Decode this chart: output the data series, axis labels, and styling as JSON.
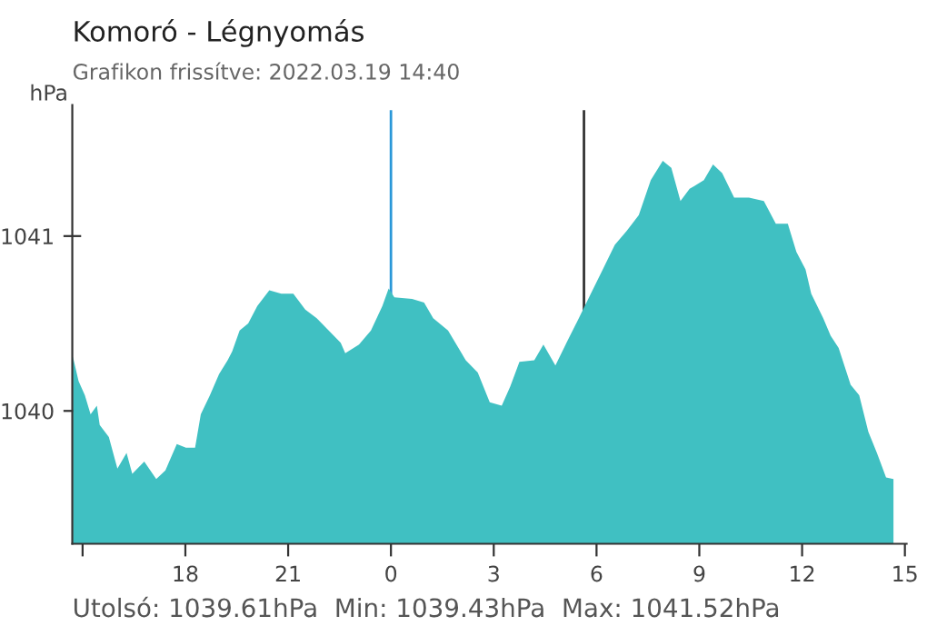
{
  "chart_data": {
    "type": "area",
    "title": "Komoró - Légnyomás",
    "subtitle": "Grafikon frissítve: 2022.03.19 14:40",
    "ylabel": "hPa",
    "annotations": [
      "Utolsó: 1039.61hPa  Min: 1039.43hPa  Max: 1041.52hPa"
    ],
    "x": [
      "2022-03-18T14:43",
      "2022-03-18T14:53",
      "2022-03-18T15:04",
      "2022-03-18T15:14",
      "2022-03-18T15:25",
      "2022-03-18T15:30",
      "2022-03-18T15:46",
      "2022-03-18T16:01",
      "2022-03-18T16:17",
      "2022-03-18T16:27",
      "2022-03-18T16:48",
      "2022-03-18T17:09",
      "2022-03-18T17:25",
      "2022-03-18T17:45",
      "2022-03-18T18:01",
      "2022-03-18T18:17",
      "2022-03-18T18:27",
      "2022-03-18T18:43",
      "2022-03-18T18:59",
      "2022-03-18T19:14",
      "2022-03-18T19:22",
      "2022-03-18T19:35",
      "2022-03-18T19:50",
      "2022-03-18T20:06",
      "2022-03-18T20:27",
      "2022-03-18T20:48",
      "2022-03-18T21:09",
      "2022-03-18T21:30",
      "2022-03-18T21:50",
      "2022-03-18T22:11",
      "2022-03-18T22:32",
      "2022-03-18T22:40",
      "2022-03-18T23:04",
      "2022-03-18T23:25",
      "2022-03-18T23:45",
      "2022-03-18T23:56",
      "2022-03-19T00:06",
      "2022-03-19T00:37",
      "2022-03-19T00:58",
      "2022-03-19T01:14",
      "2022-03-19T01:40",
      "2022-03-19T02:11",
      "2022-03-19T02:32",
      "2022-03-19T02:53",
      "2022-03-19T03:14",
      "2022-03-19T03:29",
      "2022-03-19T03:45",
      "2022-03-19T04:11",
      "2022-03-19T04:27",
      "2022-03-19T04:48",
      "2022-03-19T05:09",
      "2022-03-19T05:29",
      "2022-03-19T05:50",
      "2022-03-19T06:11",
      "2022-03-19T06:32",
      "2022-03-19T06:53",
      "2022-03-19T07:14",
      "2022-03-19T07:35",
      "2022-03-19T07:56",
      "2022-03-19T08:11",
      "2022-03-19T08:27",
      "2022-03-19T08:43",
      "2022-03-19T09:08",
      "2022-03-19T09:24",
      "2022-03-19T09:40",
      "2022-03-19T10:01",
      "2022-03-19T10:27",
      "2022-03-19T10:53",
      "2022-03-19T11:14",
      "2022-03-19T11:35",
      "2022-03-19T11:50",
      "2022-03-19T12:06",
      "2022-03-19T12:16",
      "2022-03-19T12:37",
      "2022-03-19T12:50",
      "2022-03-19T13:04",
      "2022-03-19T13:25",
      "2022-03-19T13:40",
      "2022-03-19T13:56",
      "2022-03-19T14:11",
      "2022-03-19T14:27",
      "2022-03-19T14:40"
    ],
    "series": [
      {
        "color": "#40c0c2",
        "values": [
          1040.31,
          1040.17,
          1040.09,
          1039.98,
          1040.03,
          1039.92,
          1039.85,
          1039.67,
          1039.76,
          1039.64,
          1039.71,
          1039.61,
          1039.66,
          1039.81,
          1039.79,
          1039.79,
          1039.98,
          1040.09,
          1040.21,
          1040.29,
          1040.34,
          1040.46,
          1040.5,
          1040.6,
          1040.69,
          1040.67,
          1040.67,
          1040.58,
          1040.53,
          1040.46,
          1040.39,
          1040.33,
          1040.38,
          1040.46,
          1040.6,
          1040.7,
          1040.65,
          1040.64,
          1040.62,
          1040.53,
          1040.46,
          1040.29,
          1040.22,
          1040.05,
          1040.03,
          1040.14,
          1040.28,
          1040.29,
          1040.38,
          1040.26,
          1040.4,
          1040.53,
          1040.67,
          1040.81,
          1040.95,
          1041.03,
          1041.12,
          1041.32,
          1041.43,
          1041.39,
          1041.2,
          1041.27,
          1041.32,
          1041.41,
          1041.36,
          1041.22,
          1041.22,
          1041.2,
          1041.07,
          1041.07,
          1040.91,
          1040.81,
          1040.67,
          1040.53,
          1040.43,
          1040.36,
          1040.15,
          1040.09,
          1039.88,
          1039.76,
          1039.62,
          1039.61
        ]
      }
    ],
    "xlim": [
      "2022-03-18T14:42",
      "2022-03-19T15:03"
    ],
    "ylim": [
      1039.24,
      1041.75
    ],
    "xticks": [
      {
        "value": "2022-03-18T15:00",
        "label": null
      },
      {
        "value": "2022-03-18T18:00",
        "label": "18"
      },
      {
        "value": "2022-03-18T21:00",
        "label": "21"
      },
      {
        "value": "2022-03-19T00:00",
        "label": "0"
      },
      {
        "value": "2022-03-19T03:00",
        "label": "3"
      },
      {
        "value": "2022-03-19T06:00",
        "label": "6"
      },
      {
        "value": "2022-03-19T09:00",
        "label": "9"
      },
      {
        "value": "2022-03-19T12:00",
        "label": "12"
      },
      {
        "value": "2022-03-19T15:00",
        "label": "15"
      }
    ],
    "yticks": [
      1040,
      1041
    ],
    "ref_lines": [
      {
        "axis": "x",
        "value": "2022-03-19T00:00",
        "color": "#2a98d8"
      },
      {
        "axis": "x",
        "value": "2022-03-19T05:38",
        "color": "#333333"
      }
    ],
    "grid": false,
    "legend": false
  }
}
